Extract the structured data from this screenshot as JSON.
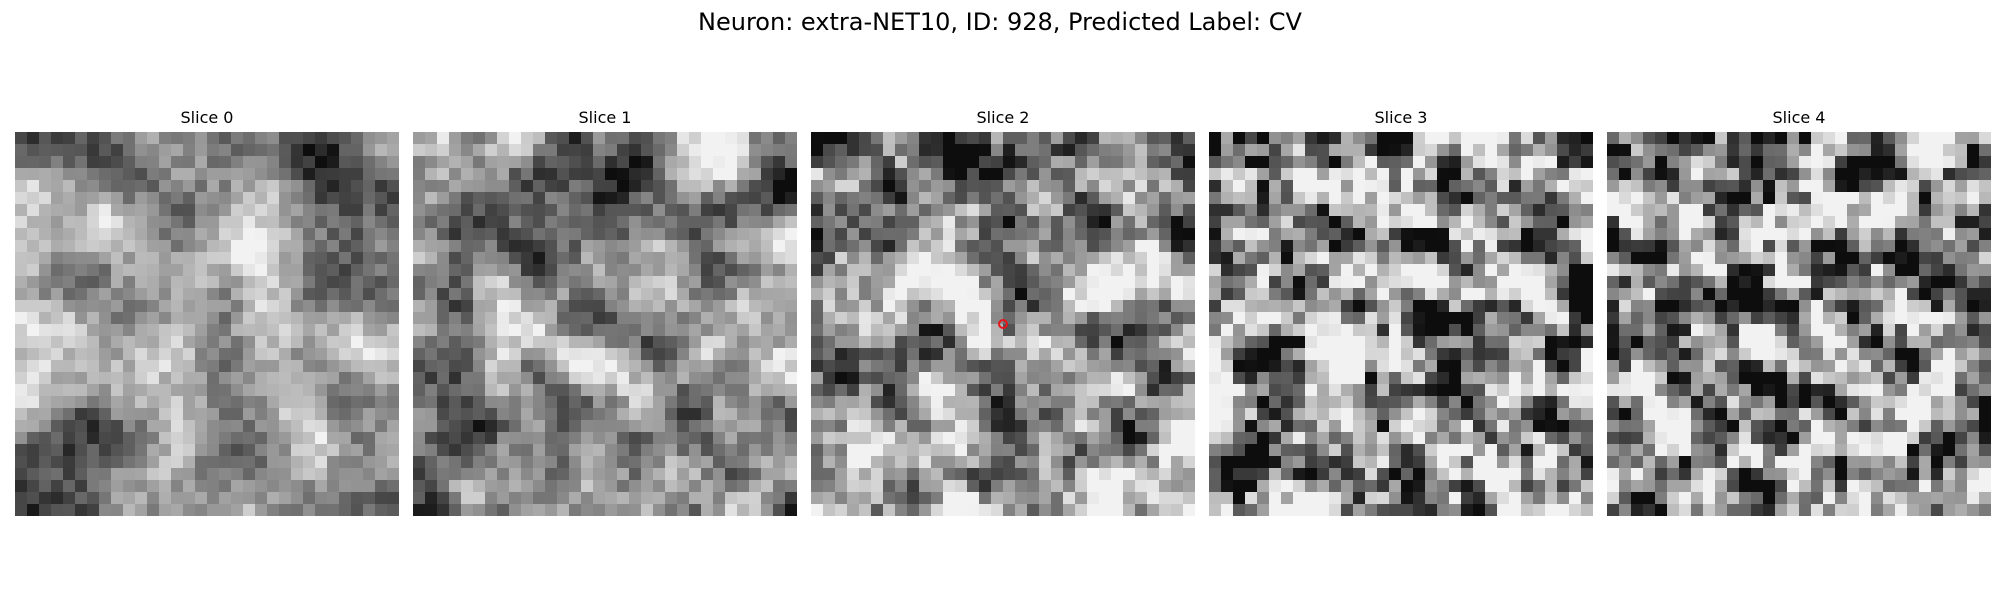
{
  "figure": {
    "title": "Neuron: extra-NET10, ID: 928, Predicted Label: CV"
  },
  "panels": [
    {
      "title": "Slice 0"
    },
    {
      "title": "Slice 1"
    },
    {
      "title": "Slice 2",
      "has_marker": true
    },
    {
      "title": "Slice 3"
    },
    {
      "title": "Slice 4"
    }
  ],
  "colors": {
    "marker": "#e8141c",
    "background": "#ffffff"
  }
}
